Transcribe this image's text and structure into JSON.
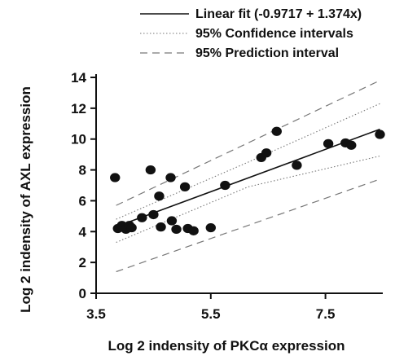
{
  "chart_data": {
    "type": "scatter",
    "title": "",
    "xlabel": "Log 2 indensity of PKCα expression",
    "ylabel": "Log 2 indensity of AXL expression",
    "xlim": [
      3.5,
      8.5
    ],
    "ylim": [
      0,
      14
    ],
    "x_ticks": [
      {
        "value": 3.5,
        "label": "3.5"
      },
      {
        "value": 5.5,
        "label": "5.5"
      },
      {
        "value": 7.5,
        "label": "7.5"
      }
    ],
    "y_ticks": [
      {
        "value": 0,
        "label": "0"
      },
      {
        "value": 2,
        "label": "2"
      },
      {
        "value": 4,
        "label": "4"
      },
      {
        "value": 6,
        "label": "6"
      },
      {
        "value": 8,
        "label": "8"
      },
      {
        "value": 10,
        "label": "10"
      },
      {
        "value": 12,
        "label": "12"
      },
      {
        "value": 14,
        "label": "14"
      }
    ],
    "grid": false,
    "legend_position": "top-right",
    "legend": [
      {
        "label": "Linear fit (-0.9717 + 1.374x)",
        "style": "solid"
      },
      {
        "label": "95% Confidence intervals",
        "style": "dotted"
      },
      {
        "label": "95% Prediction interval",
        "style": "dashed"
      }
    ],
    "fit": {
      "intercept": -0.9717,
      "slope": 1.374
    },
    "confidence_band": {
      "x": [
        3.85,
        6.15,
        8.45
      ],
      "lower": [
        3.3,
        6.9,
        8.9
      ],
      "upper": [
        4.8,
        8.5,
        12.3
      ]
    },
    "prediction_band": {
      "x": [
        3.85,
        8.45
      ],
      "lower": [
        1.4,
        7.4
      ],
      "upper": [
        5.7,
        13.8
      ]
    },
    "points": [
      {
        "x": 3.83,
        "y": 7.5
      },
      {
        "x": 3.88,
        "y": 4.2
      },
      {
        "x": 3.95,
        "y": 4.4
      },
      {
        "x": 4.02,
        "y": 4.15
      },
      {
        "x": 4.08,
        "y": 4.4
      },
      {
        "x": 4.12,
        "y": 4.25
      },
      {
        "x": 4.3,
        "y": 4.9
      },
      {
        "x": 4.45,
        "y": 8.0
      },
      {
        "x": 4.5,
        "y": 5.1
      },
      {
        "x": 4.6,
        "y": 6.3
      },
      {
        "x": 4.63,
        "y": 4.3
      },
      {
        "x": 4.8,
        "y": 7.5
      },
      {
        "x": 4.82,
        "y": 4.7
      },
      {
        "x": 4.9,
        "y": 4.15
      },
      {
        "x": 5.05,
        "y": 6.9
      },
      {
        "x": 5.1,
        "y": 4.2
      },
      {
        "x": 5.2,
        "y": 4.05
      },
      {
        "x": 5.5,
        "y": 4.25
      },
      {
        "x": 5.75,
        "y": 7.0
      },
      {
        "x": 6.38,
        "y": 8.8
      },
      {
        "x": 6.47,
        "y": 9.1
      },
      {
        "x": 6.65,
        "y": 10.5
      },
      {
        "x": 7.0,
        "y": 8.3
      },
      {
        "x": 7.55,
        "y": 9.7
      },
      {
        "x": 7.85,
        "y": 9.75
      },
      {
        "x": 7.95,
        "y": 9.6
      },
      {
        "x": 8.45,
        "y": 10.3
      }
    ]
  }
}
